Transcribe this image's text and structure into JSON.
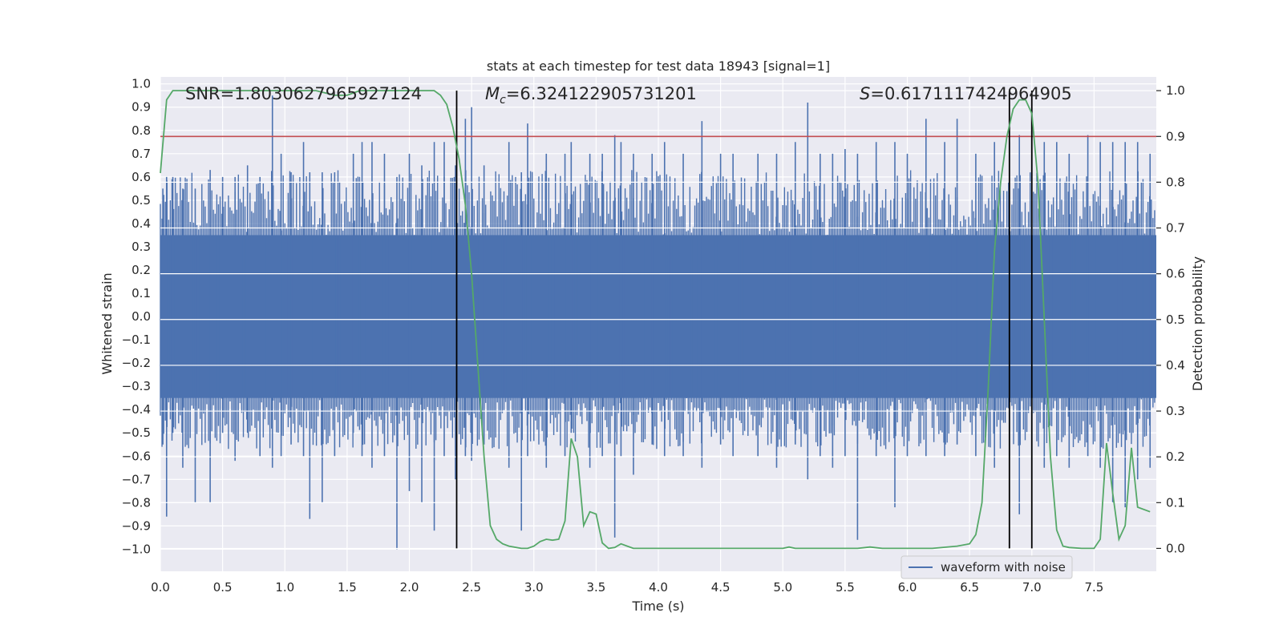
{
  "chart_data": {
    "type": "line",
    "title": "stats at each timestep for test data 18943 [signal=1]",
    "xlabel": "Time (s)",
    "ylabel_left": "Whitened strain",
    "ylabel_right": "Detection probability",
    "xlim": [
      0,
      8
    ],
    "ylim_left": [
      -1.095,
      1.03
    ],
    "ylim_right": [
      -0.05,
      1.03
    ],
    "x_ticks": [
      0.0,
      0.5,
      1.0,
      1.5,
      2.0,
      2.5,
      3.0,
      3.5,
      4.0,
      4.5,
      5.0,
      5.5,
      6.0,
      6.5,
      7.0,
      7.5
    ],
    "x_tick_labels": [
      "0.0",
      "0.5",
      "1.0",
      "1.5",
      "2.0",
      "2.5",
      "3.0",
      "3.5",
      "4.0",
      "4.5",
      "5.0",
      "5.5",
      "6.0",
      "6.5",
      "7.0",
      "7.5"
    ],
    "y_left_ticks": [
      -1.0,
      -0.9,
      -0.8,
      -0.7,
      -0.6,
      -0.5,
      -0.4,
      -0.3,
      -0.2,
      -0.1,
      0.0,
      0.1,
      0.2,
      0.3,
      0.4,
      0.5,
      0.6,
      0.7,
      0.8,
      0.9,
      1.0
    ],
    "y_left_tick_labels": [
      "−1.0",
      "−0.9",
      "−0.8",
      "−0.7",
      "−0.6",
      "−0.5",
      "−0.4",
      "−0.3",
      "−0.2",
      "−0.1",
      "0.0",
      "0.1",
      "0.2",
      "0.3",
      "0.4",
      "0.5",
      "0.6",
      "0.7",
      "0.8",
      "0.9",
      "1.0"
    ],
    "y_right_ticks": [
      0.0,
      0.1,
      0.2,
      0.3,
      0.4,
      0.5,
      0.6,
      0.7,
      0.8,
      0.9,
      1.0
    ],
    "y_right_tick_labels": [
      "0.0",
      "0.1",
      "0.2",
      "0.3",
      "0.4",
      "0.5",
      "0.6",
      "0.7",
      "0.8",
      "0.9",
      "1.0"
    ],
    "annotations": {
      "snr": "SNR=1.8030627965927124",
      "mc_symbol": "M",
      "mc_subscript": "c",
      "mc_value": "=6.324122905731201",
      "s_symbol": "S",
      "s_value": "=0.6171117424964905"
    },
    "legend": {
      "label": "waveform with noise",
      "location": "lower-right"
    },
    "threshold": {
      "y": 0.9,
      "color": "#c44e52"
    },
    "vertical_markers_x": [
      2.38,
      6.82,
      7.0
    ],
    "waveform": {
      "name": "waveform with noise",
      "color": "#4c72b0",
      "band": {
        "lower": -0.35,
        "upper": 0.35
      },
      "spikes": [
        [
          0.02,
          0.55,
          -0.55
        ],
        [
          0.05,
          0.6,
          -0.86
        ],
        [
          0.1,
          0.6,
          -0.5
        ],
        [
          0.18,
          0.55,
          -0.65
        ],
        [
          0.28,
          0.55,
          -0.8
        ],
        [
          0.4,
          0.63,
          -0.8
        ],
        [
          0.5,
          0.6,
          -0.5
        ],
        [
          0.6,
          0.6,
          -0.62
        ],
        [
          0.7,
          0.65,
          -0.5
        ],
        [
          0.8,
          0.6,
          -0.6
        ],
        [
          0.9,
          0.95,
          -0.65
        ],
        [
          0.97,
          0.7,
          -0.6
        ],
        [
          1.05,
          0.62,
          -0.55
        ],
        [
          1.15,
          0.75,
          -0.6
        ],
        [
          1.2,
          0.62,
          -0.87
        ],
        [
          1.3,
          0.62,
          -0.8
        ],
        [
          1.4,
          0.62,
          -0.6
        ],
        [
          1.55,
          0.7,
          -0.5
        ],
        [
          1.62,
          0.75,
          -0.6
        ],
        [
          1.7,
          0.75,
          -0.65
        ],
        [
          1.8,
          0.7,
          -0.6
        ],
        [
          1.9,
          0.6,
          -1.0
        ],
        [
          2.0,
          0.7,
          -0.75
        ],
        [
          2.1,
          0.65,
          -0.8
        ],
        [
          2.2,
          0.75,
          -0.92
        ],
        [
          2.28,
          0.75,
          -0.6
        ],
        [
          2.37,
          0.65,
          -0.7
        ],
        [
          2.45,
          0.85,
          -0.6
        ],
        [
          2.5,
          0.9,
          -0.62
        ],
        [
          2.6,
          0.65,
          -0.55
        ],
        [
          2.8,
          0.75,
          -0.65
        ],
        [
          2.9,
          0.62,
          -0.92
        ],
        [
          2.95,
          0.83,
          -0.6
        ],
        [
          3.1,
          0.7,
          -0.65
        ],
        [
          3.25,
          0.7,
          -0.6
        ],
        [
          3.3,
          0.75,
          -0.5
        ],
        [
          3.45,
          0.7,
          -0.65
        ],
        [
          3.55,
          0.7,
          -0.6
        ],
        [
          3.65,
          0.78,
          -0.95
        ],
        [
          3.7,
          0.75,
          -0.6
        ],
        [
          3.8,
          0.7,
          -0.68
        ],
        [
          3.95,
          0.7,
          -0.55
        ],
        [
          4.05,
          0.75,
          -0.6
        ],
        [
          4.2,
          0.7,
          -0.6
        ],
        [
          4.35,
          0.84,
          -0.65
        ],
        [
          4.5,
          0.7,
          -0.55
        ],
        [
          4.6,
          0.7,
          -0.6
        ],
        [
          4.8,
          0.7,
          -0.6
        ],
        [
          4.95,
          0.7,
          -0.65
        ],
        [
          5.1,
          0.75,
          -0.55
        ],
        [
          5.2,
          0.92,
          -0.7
        ],
        [
          5.3,
          0.7,
          -0.6
        ],
        [
          5.4,
          0.7,
          -0.65
        ],
        [
          5.5,
          0.72,
          -0.6
        ],
        [
          5.6,
          0.7,
          -0.96
        ],
        [
          5.75,
          0.75,
          -0.6
        ],
        [
          5.9,
          0.75,
          -0.82
        ],
        [
          6.0,
          0.7,
          -0.6
        ],
        [
          6.15,
          0.85,
          -0.6
        ],
        [
          6.3,
          0.75,
          -0.6
        ],
        [
          6.4,
          0.85,
          -0.55
        ],
        [
          6.55,
          0.7,
          -0.6
        ],
        [
          6.7,
          0.75,
          -0.65
        ],
        [
          6.82,
          0.75,
          -0.6
        ],
        [
          6.9,
          0.78,
          -0.85
        ],
        [
          7.0,
          0.9,
          -0.7
        ],
        [
          7.1,
          0.75,
          -0.65
        ],
        [
          7.2,
          0.75,
          -0.6
        ],
        [
          7.3,
          0.7,
          -0.65
        ],
        [
          7.45,
          0.78,
          -0.6
        ],
        [
          7.55,
          0.75,
          -0.65
        ],
        [
          7.65,
          0.75,
          -0.8
        ],
        [
          7.75,
          0.75,
          -0.82
        ],
        [
          7.85,
          0.75,
          -0.7
        ],
        [
          7.95,
          0.7,
          -0.65
        ]
      ]
    },
    "detection_probability": {
      "color": "#55a868",
      "x": [
        0.0,
        0.05,
        0.1,
        0.15,
        0.3,
        0.5,
        0.7,
        0.9,
        1.0,
        1.1,
        1.15,
        1.25,
        1.4,
        1.5,
        1.6,
        1.7,
        1.8,
        1.9,
        2.0,
        2.1,
        2.2,
        2.25,
        2.3,
        2.35,
        2.4,
        2.45,
        2.5,
        2.55,
        2.6,
        2.65,
        2.7,
        2.75,
        2.8,
        2.9,
        2.95,
        3.0,
        3.05,
        3.1,
        3.15,
        3.2,
        3.25,
        3.3,
        3.35,
        3.4,
        3.45,
        3.5,
        3.55,
        3.6,
        3.65,
        3.7,
        3.75,
        3.8,
        3.85,
        3.9,
        3.95,
        4.0,
        4.2,
        4.4,
        4.6,
        4.8,
        5.0,
        5.05,
        5.1,
        5.2,
        5.4,
        5.6,
        5.7,
        5.8,
        6.0,
        6.2,
        6.4,
        6.5,
        6.55,
        6.6,
        6.65,
        6.7,
        6.75,
        6.8,
        6.85,
        6.9,
        6.95,
        7.0,
        7.05,
        7.1,
        7.15,
        7.2,
        7.25,
        7.3,
        7.4,
        7.5,
        7.55,
        7.6,
        7.65,
        7.7,
        7.75,
        7.8,
        7.85,
        7.95
      ],
      "y": [
        0.82,
        0.98,
        1.0,
        1.0,
        1.0,
        1.0,
        1.0,
        1.0,
        1.0,
        1.0,
        1.0,
        1.0,
        0.99,
        0.99,
        1.0,
        1.0,
        1.0,
        1.0,
        1.0,
        1.0,
        1.0,
        0.99,
        0.97,
        0.92,
        0.85,
        0.75,
        0.6,
        0.4,
        0.2,
        0.05,
        0.02,
        0.01,
        0.005,
        0.0,
        0.0,
        0.005,
        0.015,
        0.02,
        0.018,
        0.02,
        0.06,
        0.24,
        0.2,
        0.05,
        0.08,
        0.075,
        0.012,
        0.0,
        0.002,
        0.01,
        0.005,
        0.0,
        0.0,
        0.0,
        0.0,
        0.0,
        0.0,
        0.0,
        0.0,
        0.0,
        0.0,
        0.003,
        0.0,
        0.0,
        0.0,
        0.0,
        0.003,
        0.0,
        0.0,
        0.0,
        0.005,
        0.01,
        0.03,
        0.1,
        0.35,
        0.65,
        0.8,
        0.9,
        0.96,
        0.98,
        0.98,
        0.95,
        0.8,
        0.5,
        0.2,
        0.04,
        0.005,
        0.002,
        0.0,
        0.0,
        0.02,
        0.23,
        0.12,
        0.02,
        0.05,
        0.22,
        0.09,
        0.08
      ]
    }
  }
}
